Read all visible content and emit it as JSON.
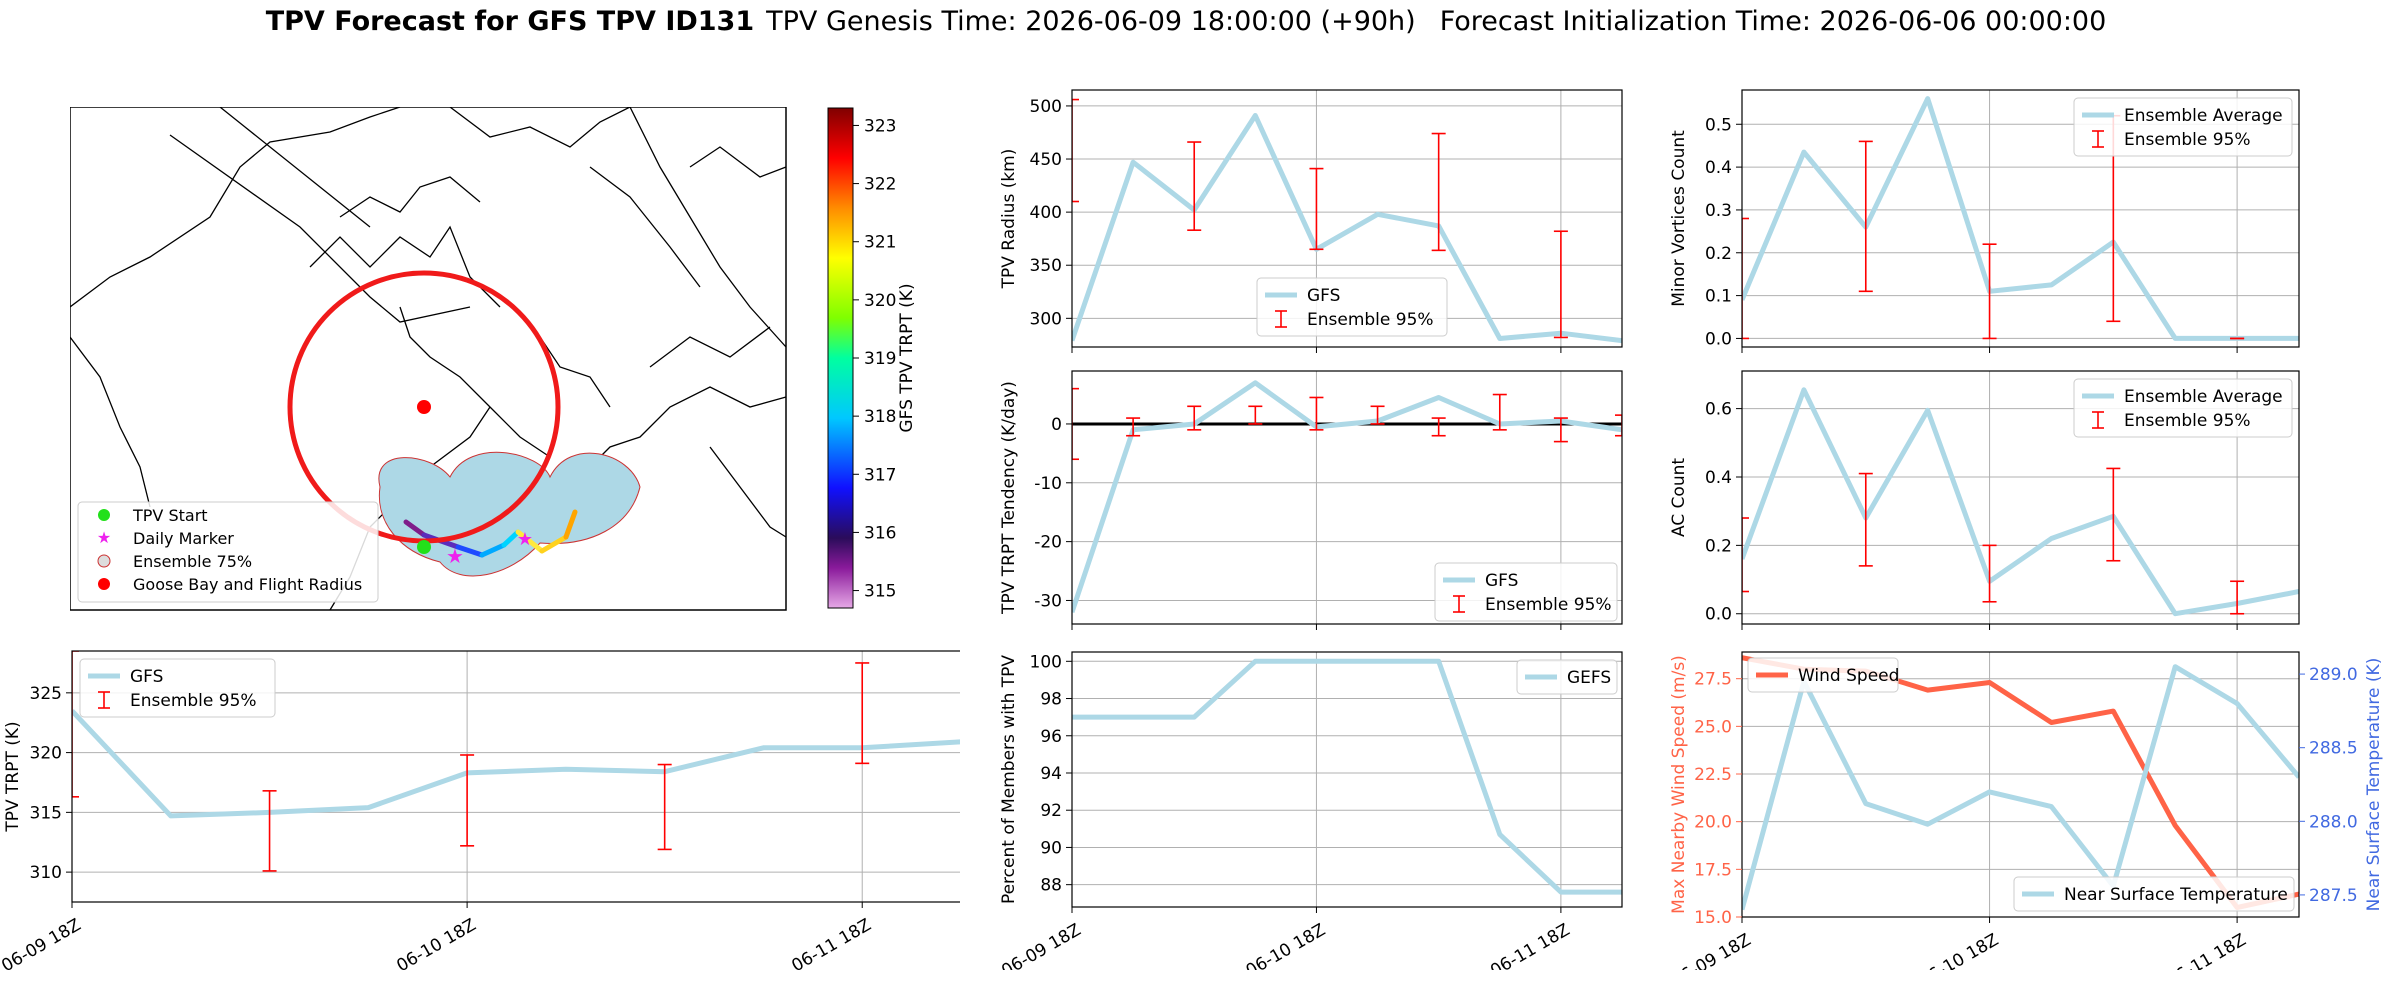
{
  "header": {
    "title_bold": "TPV Forecast for GFS TPV ID131",
    "genesis": "TPV Genesis Time: 2026-06-09 18:00:00 (+90h)",
    "init": "Forecast Initialization Time: 2026-06-06 00:00:00"
  },
  "colors": {
    "gfs": "#add8e6",
    "err": "#ff0000",
    "wind": "#ff6347",
    "temp_axis": "#4169e1",
    "zero": "#000000"
  },
  "map": {
    "legend": [
      "TPV Start",
      "Daily Marker",
      "Ensemble 75%",
      "Goose Bay and Flight Radius"
    ],
    "colorbar_label": "GFS TPV TRPT (K)",
    "colorbar_ticks": [
      "315",
      "316",
      "317",
      "318",
      "319",
      "320",
      "321",
      "322",
      "323"
    ],
    "colorbar_range": [
      314.7,
      323.3
    ]
  },
  "x_ticks": [
    "06-09 18Z",
    "06-10 18Z",
    "06-11 18Z"
  ],
  "chart_data": [
    {
      "id": "trpt",
      "type": "line",
      "ylabel": "TPV TRPT (K)",
      "ylim": [
        307.5,
        328.5
      ],
      "yticks": [
        310,
        315,
        320,
        325
      ],
      "legend": [
        "GFS",
        "Ensemble 95%"
      ],
      "xlim": [
        0,
        13.5
      ],
      "series": [
        {
          "name": "GFS",
          "x": [
            0,
            1.5,
            3,
            4.5,
            6,
            7.5,
            9,
            10.5,
            12,
            13.5
          ],
          "values": [
            323.5,
            314.7,
            315.0,
            315.4,
            318.3,
            318.6,
            318.4,
            320.4,
            320.4,
            320.9
          ]
        }
      ],
      "errorbars": [
        {
          "x": 0,
          "low": 316.3,
          "high": 328.5
        },
        {
          "x": 3,
          "low": 310.1,
          "high": 316.8
        },
        {
          "x": 6,
          "low": 312.2,
          "high": 319.8
        },
        {
          "x": 9,
          "low": 311.9,
          "high": 319.0
        },
        {
          "x": 12,
          "low": 319.1,
          "high": 327.5
        }
      ]
    },
    {
      "id": "radius",
      "type": "line",
      "ylabel": "TPV Radius (km)",
      "ylim": [
        273,
        515
      ],
      "yticks": [
        300,
        350,
        400,
        450,
        500
      ],
      "legend": [
        "GFS",
        "Ensemble 95%"
      ],
      "xlim": [
        0,
        9
      ],
      "series": [
        {
          "name": "GFS",
          "x": [
            0,
            1,
            2,
            3,
            4,
            5,
            6,
            7,
            8,
            9
          ],
          "values": [
            279,
            447,
            402,
            491,
            365,
            398,
            387,
            281,
            286,
            279
          ]
        }
      ],
      "errorbars": [
        {
          "x": 0,
          "low": 410,
          "high": 506
        },
        {
          "x": 2,
          "low": 383,
          "high": 466
        },
        {
          "x": 4,
          "low": 365,
          "high": 441
        },
        {
          "x": 6,
          "low": 364,
          "high": 474
        },
        {
          "x": 8,
          "low": 282,
          "high": 382
        }
      ]
    },
    {
      "id": "tendency",
      "type": "line",
      "ylabel": "TPV TRPT Tendency (K/day)",
      "ylim": [
        -34,
        9
      ],
      "yticks": [
        -30,
        -20,
        -10,
        0
      ],
      "legend": [
        "GFS",
        "Ensemble 95%"
      ],
      "xlim": [
        0,
        9
      ],
      "series": [
        {
          "name": "GFS",
          "x": [
            0,
            1,
            2,
            3,
            4,
            5,
            6,
            7,
            8,
            9
          ],
          "values": [
            -32,
            -1,
            0,
            7,
            -0.5,
            0.5,
            4.5,
            0,
            0.5,
            -1
          ]
        }
      ],
      "errorbars": [
        {
          "x": 0,
          "low": -6,
          "high": 6
        },
        {
          "x": 1,
          "low": -2,
          "high": 1
        },
        {
          "x": 2,
          "low": -1,
          "high": 3
        },
        {
          "x": 3,
          "low": 0,
          "high": 3
        },
        {
          "x": 4,
          "low": -1,
          "high": 4.5
        },
        {
          "x": 5,
          "low": 0,
          "high": 3
        },
        {
          "x": 6,
          "low": -2,
          "high": 1
        },
        {
          "x": 7,
          "low": -1,
          "high": 5
        },
        {
          "x": 8,
          "low": -3,
          "high": 1
        },
        {
          "x": 9,
          "low": -2,
          "high": 1.5
        }
      ]
    },
    {
      "id": "members",
      "type": "line",
      "ylabel": "Percent of Members with TPV",
      "ylim": [
        86.8,
        100.5
      ],
      "yticks": [
        88,
        90,
        92,
        94,
        96,
        98,
        100
      ],
      "legend": [
        "GEFS"
      ],
      "xlim": [
        0,
        9
      ],
      "series": [
        {
          "name": "GEFS",
          "x": [
            0,
            1,
            2,
            3,
            4,
            5,
            6,
            7,
            8,
            9
          ],
          "values": [
            97,
            97,
            97,
            100,
            100,
            100,
            100,
            90.7,
            87.6,
            87.6
          ]
        }
      ]
    },
    {
      "id": "minor",
      "type": "line",
      "ylabel": "Minor Vortices Count",
      "ylim": [
        -0.02,
        0.58
      ],
      "yticks": [
        "0.0",
        "0.1",
        "0.2",
        "0.3",
        "0.4",
        "0.5"
      ],
      "legend": [
        "Ensemble Average",
        "Ensemble 95%"
      ],
      "xlim": [
        0,
        9
      ],
      "series": [
        {
          "name": "Ensemble Average",
          "x": [
            0,
            1,
            2,
            3,
            4,
            5,
            6,
            7,
            8,
            9
          ],
          "values": [
            0.09,
            0.435,
            0.26,
            0.56,
            0.11,
            0.125,
            0.225,
            0,
            0,
            0
          ]
        }
      ],
      "errorbars": [
        {
          "x": 0,
          "low": 0,
          "high": 0.28
        },
        {
          "x": 2,
          "low": 0.11,
          "high": 0.46
        },
        {
          "x": 4,
          "low": 0,
          "high": 0.22
        },
        {
          "x": 6,
          "low": 0.04,
          "high": 0.52
        },
        {
          "x": 8,
          "low": 0,
          "high": 0
        }
      ]
    },
    {
      "id": "ac",
      "type": "line",
      "ylabel": "AC Count",
      "ylim": [
        -0.03,
        0.71
      ],
      "yticks": [
        "0.0",
        "0.2",
        "0.4",
        "0.6"
      ],
      "legend": [
        "Ensemble Average",
        "Ensemble 95%"
      ],
      "xlim": [
        0,
        9
      ],
      "series": [
        {
          "name": "Ensemble Average",
          "x": [
            0,
            1,
            2,
            3,
            4,
            5,
            6,
            7,
            8,
            9
          ],
          "values": [
            0.16,
            0.655,
            0.28,
            0.595,
            0.095,
            0.22,
            0.285,
            0,
            0.03,
            0.065
          ]
        }
      ],
      "errorbars": [
        {
          "x": 0,
          "low": 0.065,
          "high": 0.28
        },
        {
          "x": 2,
          "low": 0.14,
          "high": 0.41
        },
        {
          "x": 4,
          "low": 0.035,
          "high": 0.2
        },
        {
          "x": 6,
          "low": 0.155,
          "high": 0.425
        },
        {
          "x": 8,
          "low": 0,
          "high": 0.095
        }
      ]
    },
    {
      "id": "wind",
      "type": "line",
      "ylabel": "Max Nearby Wind Speed (m/s)",
      "ylabel_right": "Near Surface Temperature (K)",
      "ylim": [
        15,
        28.9
      ],
      "yticks": [
        "15.0",
        "17.5",
        "20.0",
        "22.5",
        "25.0",
        "27.5"
      ],
      "ylim_right": [
        287.35,
        289.15
      ],
      "yticks_right": [
        "287.5",
        "288.0",
        "288.5",
        "289.0"
      ],
      "legend": [
        "Wind Speed"
      ],
      "legend_right": [
        "Near Surface Temperature"
      ],
      "xlim": [
        0,
        9
      ],
      "series": [
        {
          "name": "Wind Speed",
          "axis": "left",
          "x": [
            0,
            1,
            2,
            3,
            4,
            5,
            6,
            7,
            8,
            9
          ],
          "values": [
            28.6,
            28.0,
            27.9,
            26.9,
            27.3,
            25.2,
            25.8,
            19.8,
            15.5,
            16.2
          ]
        },
        {
          "name": "Near Surface Temperature",
          "axis": "right",
          "x": [
            0,
            1,
            2,
            3,
            4,
            5,
            6,
            7,
            8,
            9
          ],
          "values": [
            287.4,
            288.95,
            288.12,
            287.98,
            288.2,
            288.1,
            287.56,
            289.05,
            288.8,
            288.3
          ]
        }
      ]
    }
  ]
}
